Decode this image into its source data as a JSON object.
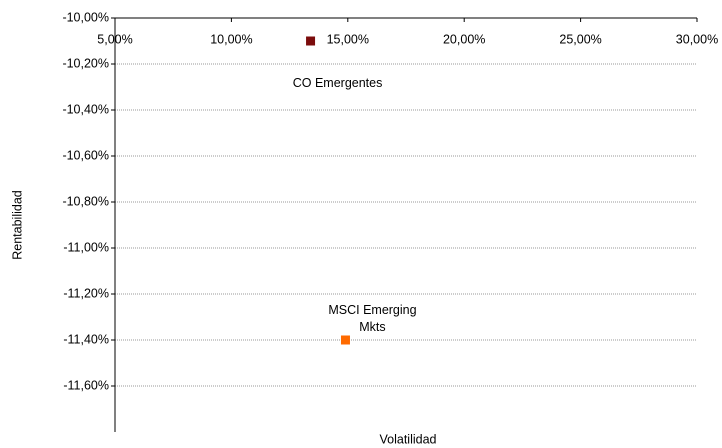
{
  "chart_data": {
    "type": "scatter",
    "x_label": "Volatilidad",
    "y_label": "Rentabilidad",
    "series": [
      {
        "name": "CO Emergentes",
        "color": "#7b0c0c",
        "x": [
          13.4
        ],
        "values": [
          -10.1
        ]
      },
      {
        "name": "MSCI Emerging Mkts",
        "color": "#ff6a00",
        "x": [
          14.9
        ],
        "values": [
          -11.4
        ]
      }
    ],
    "xlim": [
      5,
      30
    ],
    "xticks": [
      {
        "value": 5,
        "label": "5,00%"
      },
      {
        "value": 10,
        "label": "10,00%"
      },
      {
        "value": 15,
        "label": "15,00%"
      },
      {
        "value": 20,
        "label": "20,00%"
      },
      {
        "value": 25,
        "label": "25,00%"
      },
      {
        "value": 30,
        "label": "30,00%"
      }
    ],
    "ylim": [
      -11.8,
      -10
    ],
    "yticks": [
      {
        "value": -10,
        "label": "-10,00%"
      },
      {
        "value": -10.2,
        "label": "-10,20%"
      },
      {
        "value": -10.4,
        "label": "-10,40%"
      },
      {
        "value": -10.6,
        "label": "-10,60%"
      },
      {
        "value": -10.8,
        "label": "-10,80%"
      },
      {
        "value": -11,
        "label": "-11,00%"
      },
      {
        "value": -11.2,
        "label": "-11,20%"
      },
      {
        "value": -11.4,
        "label": "-11,40%"
      },
      {
        "value": -11.6,
        "label": "-11,60%"
      }
    ],
    "grid": true
  }
}
